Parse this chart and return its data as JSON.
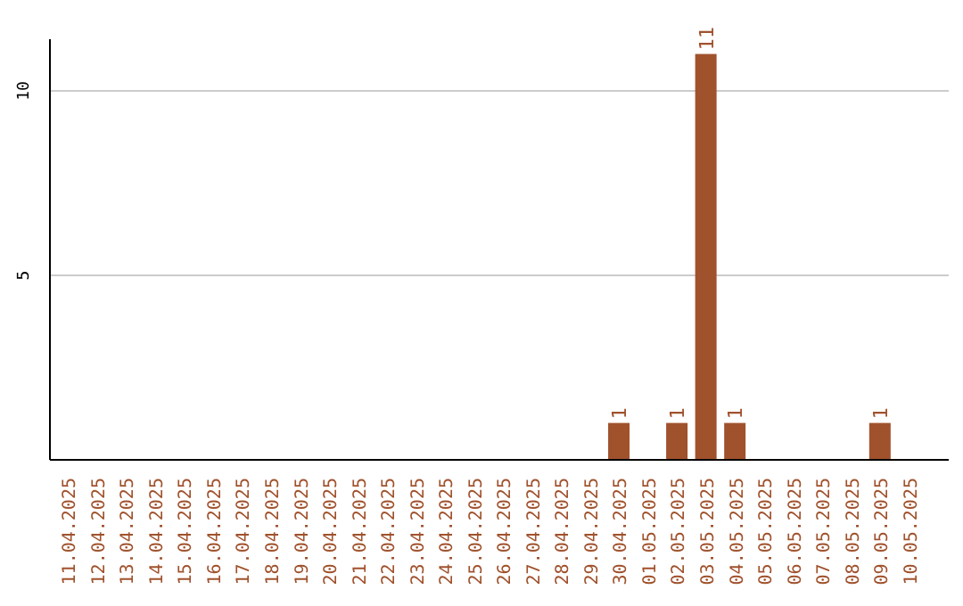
{
  "chart_data": {
    "type": "bar",
    "categories": [
      "11.04.2025",
      "12.04.2025",
      "13.04.2025",
      "14.04.2025",
      "15.04.2025",
      "16.04.2025",
      "17.04.2025",
      "18.04.2025",
      "19.04.2025",
      "20.04.2025",
      "21.04.2025",
      "22.04.2025",
      "23.04.2025",
      "24.04.2025",
      "25.04.2025",
      "26.04.2025",
      "27.04.2025",
      "28.04.2025",
      "29.04.2025",
      "30.04.2025",
      "01.05.2025",
      "02.05.2025",
      "03.05.2025",
      "04.05.2025",
      "05.05.2025",
      "06.05.2025",
      "07.05.2025",
      "08.05.2025",
      "09.05.2025",
      "10.05.2025"
    ],
    "values": [
      0,
      0,
      0,
      0,
      0,
      0,
      0,
      0,
      0,
      0,
      0,
      0,
      0,
      0,
      0,
      0,
      0,
      0,
      0,
      1,
      0,
      1,
      11,
      1,
      0,
      0,
      0,
      0,
      1,
      0
    ],
    "value_labels": [
      null,
      null,
      null,
      null,
      null,
      null,
      null,
      null,
      null,
      null,
      null,
      null,
      null,
      null,
      null,
      null,
      null,
      null,
      null,
      "1",
      null,
      "1",
      "11",
      "1",
      null,
      null,
      null,
      null,
      "1",
      null
    ],
    "color": "#a0522d",
    "ylim": [
      0,
      11.4
    ],
    "yticks": [
      5,
      10
    ],
    "grid": "y"
  }
}
